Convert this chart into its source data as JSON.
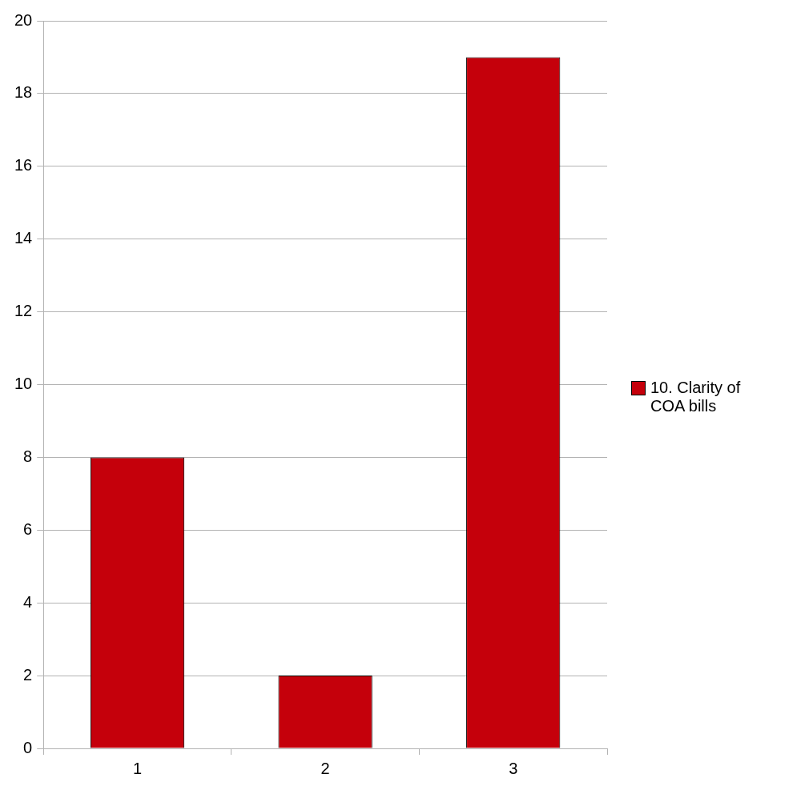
{
  "chart_data": {
    "type": "bar",
    "categories": [
      "1",
      "2",
      "3"
    ],
    "series": [
      {
        "name": "10. Clarity of COA bills",
        "color": "#c5000b",
        "values": [
          8,
          2,
          19
        ]
      }
    ],
    "ylim": [
      0,
      20
    ],
    "yticks": [
      0,
      2,
      4,
      6,
      8,
      10,
      12,
      14,
      16,
      18,
      20
    ],
    "grid": "y",
    "legend": "right"
  }
}
